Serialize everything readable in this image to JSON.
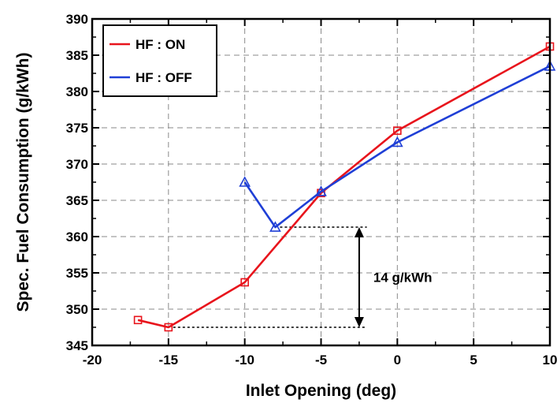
{
  "chart_data": {
    "type": "line",
    "title": "",
    "xlabel": "Inlet Opening (deg)",
    "ylabel": "Spec. Fuel Consumption (g/kWh)",
    "xlim": [
      -20,
      10
    ],
    "ylim": [
      345,
      390
    ],
    "xticks": [
      -20,
      -15,
      -10,
      -5,
      0,
      5,
      10
    ],
    "yticks": [
      345,
      350,
      355,
      360,
      365,
      370,
      375,
      380,
      385,
      390
    ],
    "grid": "dashed",
    "legend_position": "top-left",
    "series": [
      {
        "name": "HF : ON",
        "color": "#e8141c",
        "marker": "square",
        "x": [
          -17,
          -15,
          -10,
          -5,
          0,
          10
        ],
        "y": [
          348.5,
          347.5,
          353.7,
          366.0,
          374.6,
          386.2
        ]
      },
      {
        "name": "HF : OFF",
        "color": "#1f3fd6",
        "marker": "triangle",
        "x": [
          -10,
          -8,
          -5,
          0,
          10
        ],
        "y": [
          367.5,
          361.3,
          366.2,
          373.0,
          383.5
        ]
      }
    ],
    "annotations": [
      {
        "text": "14 g/kWh",
        "type": "dimension-arrow",
        "x": -2.5,
        "y_from": 347.5,
        "y_to": 361.3,
        "ref_lines": [
          {
            "x_from": -15,
            "x_to": -2,
            "y": 347.5
          },
          {
            "x_from": -8,
            "x_to": -2,
            "y": 361.3
          }
        ]
      }
    ]
  }
}
